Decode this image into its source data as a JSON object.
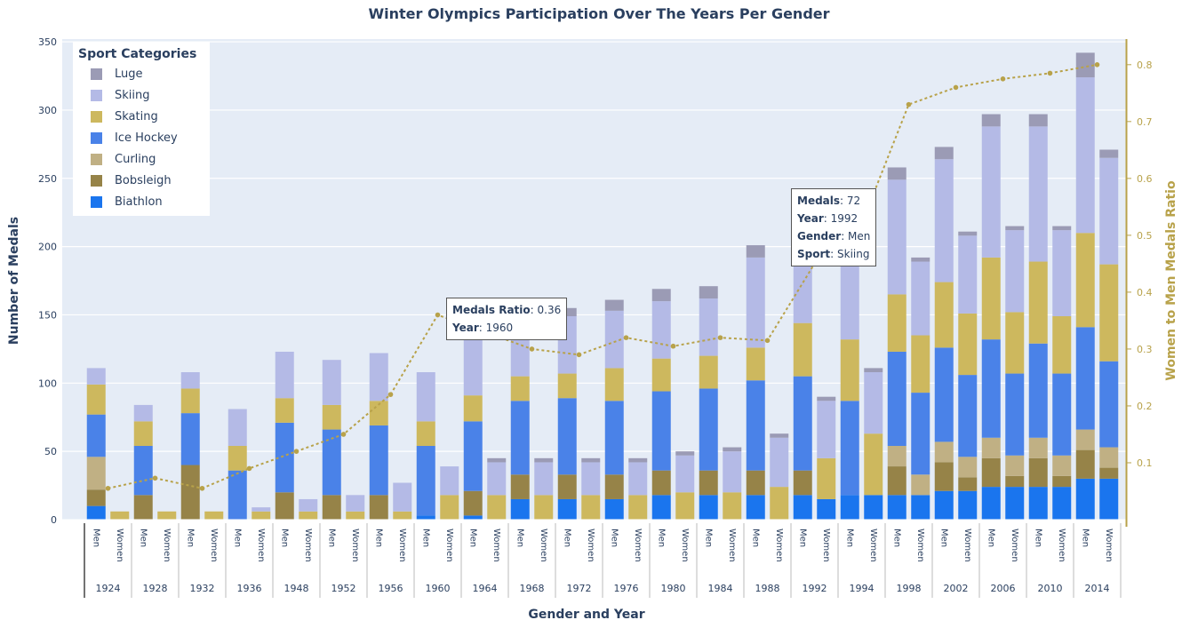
{
  "chart_data": {
    "type": "bar",
    "title": "Winter Olympics Participation Over The Years Per Gender",
    "xlabel": "Gender and Year",
    "ylabel": "Number of Medals",
    "y2label": "Women to Men Medals Ratio",
    "ylim": [
      0,
      352
    ],
    "y2lim": [
      0,
      0.845
    ],
    "yticks": [
      "0",
      "50",
      "100",
      "150",
      "200",
      "250",
      "300",
      "350"
    ],
    "y2ticks": [
      "0.1",
      "0.2",
      "0.3",
      "0.4",
      "0.5",
      "0.6",
      "0.7",
      "0.8"
    ],
    "legend_title": "Sport Categories",
    "legend_position": "top-left",
    "years": [
      "1924",
      "1928",
      "1932",
      "1936",
      "1948",
      "1952",
      "1956",
      "1960",
      "1964",
      "1968",
      "1972",
      "1976",
      "1980",
      "1984",
      "1988",
      "1992",
      "1994",
      "1998",
      "2002",
      "2006",
      "2010",
      "2014"
    ],
    "gender_labels": [
      "Men",
      "Women"
    ],
    "stack_order": [
      "Biathlon",
      "Bobsleigh",
      "Curling",
      "Ice Hockey",
      "Skating",
      "Skiing",
      "Luge"
    ],
    "series": [
      {
        "name": "Luge",
        "color": "#9b9bb5",
        "values": [
          0,
          0,
          0,
          0,
          0,
          0,
          0,
          0,
          0,
          0,
          0,
          0,
          0,
          0,
          0,
          0,
          9,
          3,
          6,
          3,
          6,
          3,
          8,
          3,
          9,
          3,
          9,
          3,
          9,
          3,
          9,
          3,
          0,
          3,
          9,
          3,
          9,
          3,
          9,
          3,
          9,
          3,
          18,
          6
        ]
      },
      {
        "name": "Skiing",
        "color": "#b4bae6",
        "values": [
          12,
          0,
          12,
          0,
          12,
          0,
          27,
          3,
          34,
          9,
          33,
          12,
          35,
          21,
          36,
          21,
          42,
          24,
          42,
          24,
          42,
          24,
          42,
          24,
          42,
          27,
          42,
          30,
          66,
          36,
          72,
          42,
          72,
          45,
          84,
          54,
          90,
          57,
          96,
          60,
          99,
          63,
          114,
          78
        ]
      },
      {
        "name": "Skating",
        "color": "#cdb85e",
        "values": [
          22,
          6,
          18,
          6,
          18,
          6,
          18,
          6,
          18,
          6,
          18,
          6,
          18,
          6,
          18,
          18,
          19,
          18,
          18,
          18,
          18,
          18,
          24,
          18,
          24,
          20,
          24,
          20,
          24,
          24,
          39,
          30,
          45,
          45,
          42,
          42,
          48,
          45,
          60,
          45,
          60,
          42,
          69,
          71
        ]
      },
      {
        "name": "Ice Hockey",
        "color": "#4a82e8",
        "values": [
          31,
          0,
          36,
          0,
          38,
          0,
          36,
          0,
          51,
          0,
          48,
          0,
          51,
          0,
          51,
          0,
          51,
          0,
          54,
          0,
          56,
          0,
          54,
          0,
          58,
          0,
          60,
          0,
          66,
          0,
          69,
          0,
          69,
          0,
          69,
          60,
          69,
          60,
          72,
          60,
          69,
          60,
          75,
          63
        ]
      },
      {
        "name": "Curling",
        "color": "#c0b084",
        "values": [
          24,
          0,
          0,
          0,
          0,
          0,
          0,
          0,
          0,
          0,
          0,
          0,
          0,
          0,
          0,
          0,
          0,
          0,
          0,
          0,
          0,
          0,
          0,
          0,
          0,
          0,
          0,
          0,
          0,
          0,
          0,
          0,
          0,
          0,
          15,
          15,
          15,
          15,
          15,
          15,
          15,
          15,
          15,
          15
        ]
      },
      {
        "name": "Bobsleigh",
        "color": "#968348",
        "values": [
          12,
          0,
          18,
          0,
          40,
          0,
          0,
          0,
          20,
          0,
          18,
          0,
          18,
          0,
          0,
          0,
          18,
          0,
          18,
          0,
          18,
          0,
          18,
          0,
          18,
          0,
          18,
          0,
          18,
          0,
          18,
          0,
          0,
          0,
          21,
          0,
          21,
          10,
          21,
          8,
          21,
          8,
          21,
          8
        ]
      },
      {
        "name": "Biathlon",
        "color": "#1a75ee",
        "values": [
          10,
          0,
          0,
          0,
          0,
          0,
          0,
          0,
          0,
          0,
          0,
          0,
          0,
          0,
          3,
          0,
          3,
          0,
          15,
          0,
          15,
          0,
          15,
          0,
          18,
          0,
          18,
          0,
          18,
          0,
          18,
          15,
          18,
          18,
          18,
          18,
          21,
          21,
          24,
          24,
          24,
          24,
          30,
          30
        ]
      }
    ],
    "ratio_series": {
      "name": "Medals Ratio",
      "color": "#b8a24a",
      "values": [
        0.055,
        0.073,
        0.055,
        0.09,
        0.12,
        0.15,
        0.22,
        0.36,
        0.33,
        0.3,
        0.29,
        0.32,
        0.305,
        0.32,
        0.315,
        0.45,
        0.52,
        0.73,
        0.76,
        0.775,
        0.785,
        0.8
      ]
    },
    "tooltips": [
      {
        "lines": [
          {
            "k": "Medals Ratio",
            "v": "0.36"
          },
          {
            "k": "Year",
            "v": "1960"
          }
        ]
      },
      {
        "lines": [
          {
            "k": "Medals",
            "v": "72"
          },
          {
            "k": "Year",
            "v": "1992"
          },
          {
            "k": "Gender",
            "v": "Men"
          },
          {
            "k": "Sport",
            "v": "Skiing"
          }
        ]
      }
    ]
  }
}
